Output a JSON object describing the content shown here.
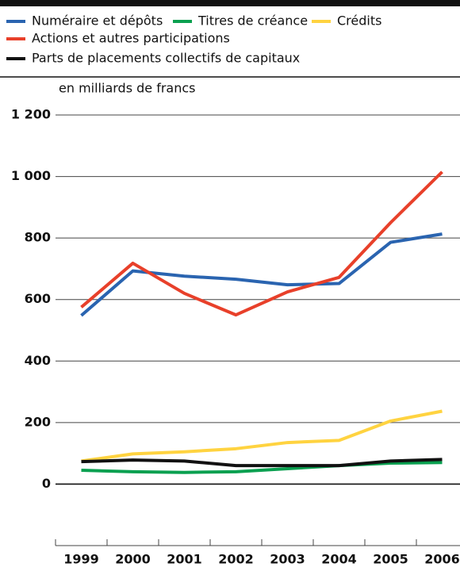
{
  "chart_data": {
    "type": "line",
    "subtitle": "en milliards de francs",
    "categories": [
      "1999",
      "2000",
      "2001",
      "2002",
      "2003",
      "2004",
      "2005",
      "2006"
    ],
    "series": [
      {
        "name": "Numéraire et dépôts",
        "color": "#2a64b0",
        "values": [
          548,
          693,
          676,
          666,
          648,
          652,
          786,
          813
        ]
      },
      {
        "name": "Titres de créance",
        "color": "#0aa050",
        "values": [
          45,
          40,
          38,
          40,
          50,
          60,
          68,
          70
        ]
      },
      {
        "name": "Crédits",
        "color": "#ffd340",
        "values": [
          75,
          98,
          105,
          115,
          135,
          142,
          205,
          237
        ]
      },
      {
        "name": "Actions et autres participations",
        "color": "#e8402a",
        "values": [
          575,
          718,
          620,
          550,
          625,
          672,
          850,
          1015
        ]
      },
      {
        "name": "Parts de placements collectifs de capitaux",
        "color": "#111111",
        "values": [
          73,
          78,
          75,
          60,
          60,
          60,
          75,
          80
        ]
      }
    ],
    "ylim": [
      -200,
      1200
    ],
    "yticks": [
      0,
      200,
      400,
      600,
      800,
      {
        "value": 1000,
        "label": "1 000"
      },
      {
        "value": 1200,
        "label": "1 200"
      }
    ],
    "grid": true
  }
}
